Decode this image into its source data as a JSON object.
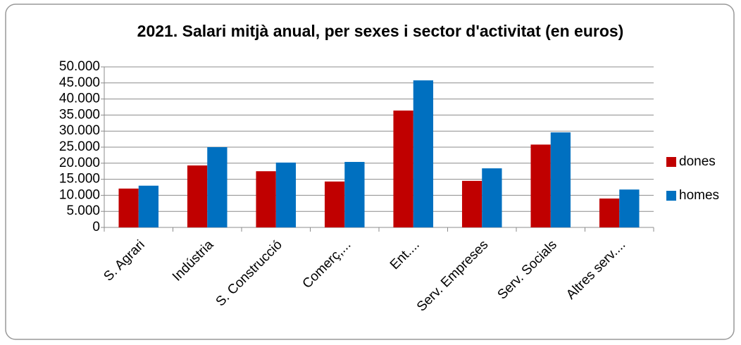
{
  "chart_data": {
    "type": "bar",
    "title": "2021. Salari mitjà anual, per sexes i sector d'activitat (en euros)",
    "categories": [
      "S. Agrari",
      "Indústria",
      "S. Construcció",
      "Comerç,...",
      "Ent....",
      "Serv. Empreses",
      "Serv. Socials",
      "Altres serv...."
    ],
    "series": [
      {
        "name": "dones",
        "color": "#c00000",
        "values": [
          12100,
          19300,
          17500,
          14300,
          36400,
          14500,
          25800,
          9000
        ]
      },
      {
        "name": "homes",
        "color": "#0070c0",
        "values": [
          13000,
          25000,
          20200,
          20400,
          45800,
          18400,
          29600,
          11800
        ]
      }
    ],
    "ylim": [
      0,
      50000
    ],
    "yticks": [
      0,
      {
        "value": 5000,
        "label": "5.000"
      },
      {
        "value": 10000,
        "label": "10.000"
      },
      {
        "value": 15000,
        "label": "15.000"
      },
      {
        "value": 20000,
        "label": "20.000"
      },
      {
        "value": 25000,
        "label": "25.000"
      },
      {
        "value": 30000,
        "label": "30.000"
      },
      {
        "value": 35000,
        "label": "35.000"
      },
      {
        "value": 40000,
        "label": "40.000"
      },
      {
        "value": 45000,
        "label": "45.000"
      },
      {
        "value": 50000,
        "label": "50.000"
      }
    ],
    "grid": true,
    "legend": "right"
  }
}
